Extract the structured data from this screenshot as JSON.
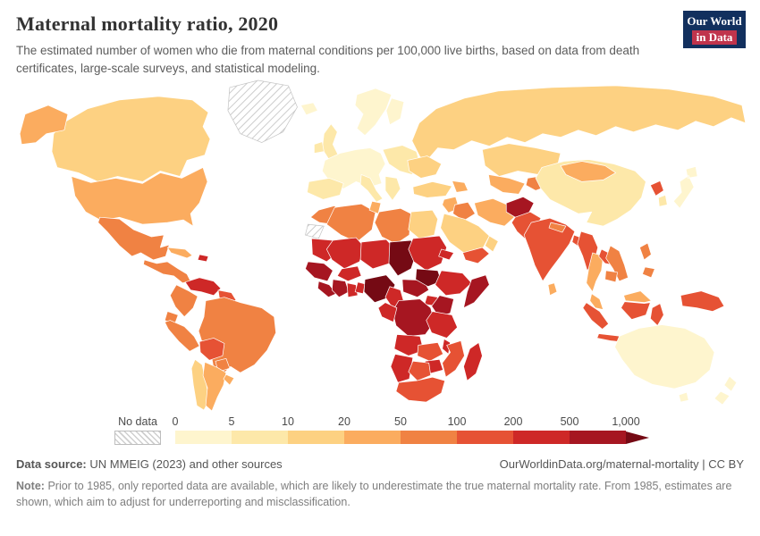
{
  "header": {
    "title": "Maternal mortality ratio, 2020",
    "subtitle": "The estimated number of women who die from maternal conditions per 100,000 live births, based on data from death certificates, large-scale surveys, and statistical modeling."
  },
  "logo": {
    "line1": "Our World",
    "line2": "in Data",
    "bg_color": "#12305E",
    "accent_color": "#C0344C"
  },
  "legend": {
    "no_data_label": "No data",
    "tick_labels": [
      "0",
      "5",
      "10",
      "20",
      "50",
      "100",
      "200",
      "500",
      "1,000"
    ]
  },
  "footer": {
    "source_label": "Data source:",
    "source_text": "UN MMEIG (2023) and other sources",
    "link_text": "OurWorldinData.org/maternal-mortality | CC BY",
    "note_label": "Note:",
    "note_text": "Prior to 1985, only reported data are available, which are likely to underestimate the true maternal mortality rate. From 1985, estimates are shown, which aim to adjust for underreporting and misclassification."
  },
  "chart_data": {
    "type": "heatmap",
    "variant": "world-choropleth",
    "title": "Maternal mortality ratio, 2020",
    "unit": "maternal deaths per 100,000 live births",
    "legend_position": "bottom",
    "bins": [
      "0-5",
      "5-10",
      "10-20",
      "20-50",
      "50-100",
      "100-200",
      "200-500",
      "500-1,000",
      "1,000+"
    ],
    "bin_colors": [
      "#FEF5CE",
      "#FDE8A9",
      "#FDD182",
      "#FBAC5F",
      "#F08243",
      "#E65234",
      "#CE2827",
      "#A61621",
      "#750A14"
    ],
    "no_data_key": "no_data",
    "countries_bin": {
      "russia": 2,
      "canada": 2,
      "alaska": 3,
      "greenland": "no_data",
      "usa": 3,
      "mexico": 4,
      "central-america": 4,
      "cuba": 3,
      "haiti-dominican-republic": 6,
      "venezuela": 6,
      "colombia": 4,
      "guyana-suriname": 5,
      "brazil": 4,
      "ecuador": 4,
      "peru": 4,
      "bolivia": 5,
      "paraguay": 4,
      "chile": 2,
      "argentina": 3,
      "uruguay": 3,
      "iceland": 0,
      "united-kingdom": 1,
      "ireland": 1,
      "scandinavia": 0,
      "finland": 0,
      "western-europe": 0,
      "iberia": 1,
      "italy": 1,
      "balkans-greece": 1,
      "eastern-europe": 1,
      "ukraine": 2,
      "turkey": 2,
      "caucasus": 3,
      "levant": 3,
      "iraq": 4,
      "saudi-arabia": 2,
      "yemen": 5,
      "oman": 2,
      "iran": 3,
      "kazakhstan": 2,
      "uzbekistan-turkmenistan": 3,
      "kyrgyzstan-tajikistan": 4,
      "afghanistan": 7,
      "pakistan": 5,
      "morocco": 4,
      "western-sahara": "no_data",
      "algeria": 4,
      "tunisia": 3,
      "libya": 4,
      "egypt": 2,
      "mauritania": 6,
      "mali": 6,
      "niger": 6,
      "chad": 8,
      "sudan": 6,
      "eritrea": 6,
      "senegal-guinea": 7,
      "sierra-leone-liberia": 7,
      "cote-divoire": 7,
      "ghana": 6,
      "togo-benin": 6,
      "burkina-faso": 6,
      "nigeria": 8,
      "cameroon": 6,
      "central-african-republic": 7,
      "south-sudan": 8,
      "ethiopia": 6,
      "somalia": 7,
      "uganda": 6,
      "kenya": 7,
      "dr-congo": 7,
      "congo-gabon": 6,
      "tanzania": 6,
      "angola": 6,
      "zambia": 5,
      "malawi": 6,
      "mozambique": 5,
      "zimbabwe": 6,
      "namibia": 6,
      "botswana": 5,
      "south-africa": 5,
      "madagascar": 6,
      "china": 1,
      "mongolia": 3,
      "north-korea": 5,
      "south-korea": 1,
      "japan": 0,
      "india": 5,
      "nepal": 4,
      "bangladesh": 5,
      "sri-lanka": 3,
      "myanmar": 5,
      "thailand": 3,
      "laos": 5,
      "vietnam": 4,
      "cambodia": 4,
      "malaysia": 3,
      "borneo-malaysia": 3,
      "borneo-indonesia": 5,
      "sumatra": 5,
      "java": 5,
      "sulawesi": 5,
      "philippines": 4,
      "new-guinea": 5,
      "australia": 0,
      "tasmania": 0,
      "new-zealand": 0
    }
  }
}
